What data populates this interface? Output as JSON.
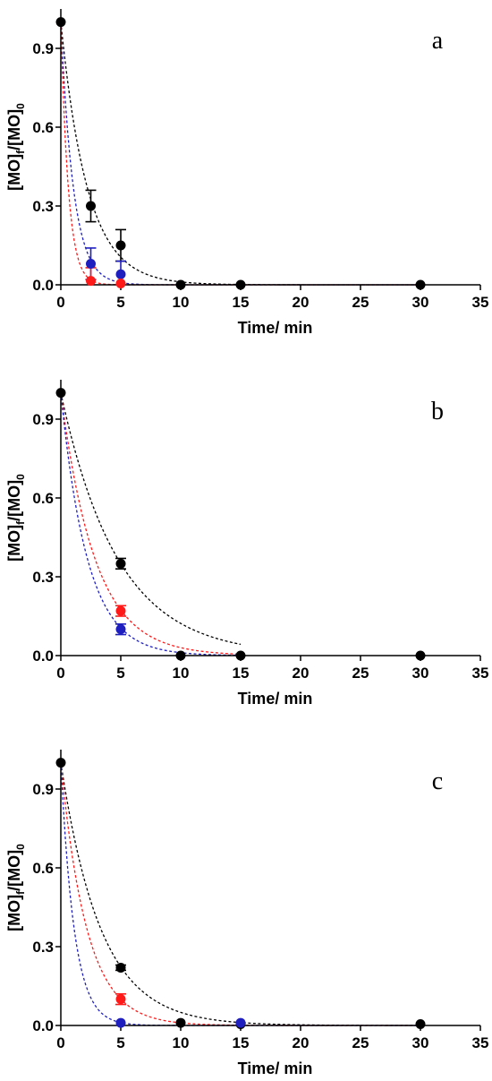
{
  "chart_data": [
    {
      "type": "scatter",
      "panel_label": "a",
      "xlabel": "Time/ min",
      "ylabel": {
        "main": "[MO]",
        "sub1": "f",
        "mid": "/[MO]",
        "sub2": "0"
      },
      "xlim": [
        0,
        35
      ],
      "ylim": [
        0,
        1.05
      ],
      "xticks": [
        "0",
        "5",
        "10",
        "15",
        "20",
        "25",
        "30",
        "35"
      ],
      "yticks": [
        "0.0",
        "0.3",
        "0.6",
        "0.9"
      ],
      "series": [
        {
          "color": "#000000",
          "x": [
            0,
            2.5,
            5,
            10,
            15,
            30
          ],
          "y": [
            1.0,
            0.3,
            0.15,
            0.0,
            0.0,
            0.0
          ],
          "err": [
            0,
            0.06,
            0.06,
            0,
            0,
            0
          ],
          "fit_k": 0.45
        },
        {
          "color": "#1f1fbf",
          "x": [
            2.5,
            5
          ],
          "y": [
            0.08,
            0.04
          ],
          "err": [
            0.06,
            0.05
          ],
          "fit_k": 0.95
        },
        {
          "color": "#ff1a1a",
          "x": [
            2.5,
            5
          ],
          "y": [
            0.015,
            0.005
          ],
          "err": [
            0.05,
            0
          ],
          "fit_k": 1.6
        }
      ]
    },
    {
      "type": "scatter",
      "panel_label": "b",
      "xlabel": "Time/ min",
      "ylabel": {
        "main": "[MO]",
        "sub1": "f",
        "mid": "/[MO]",
        "sub2": "0"
      },
      "xlim": [
        0,
        35
      ],
      "ylim": [
        0,
        1.05
      ],
      "xticks": [
        "0",
        "5",
        "10",
        "15",
        "20",
        "25",
        "30",
        "35"
      ],
      "yticks": [
        "0.0",
        "0.3",
        "0.6",
        "0.9"
      ],
      "series": [
        {
          "color": "#000000",
          "x": [
            0,
            5,
            10,
            15,
            30
          ],
          "y": [
            1.0,
            0.35,
            0.0,
            0.0,
            0.0
          ],
          "err": [
            0,
            0.02,
            0,
            0,
            0
          ],
          "fit_k": 0.21,
          "fit_end": 15
        },
        {
          "color": "#ff1a1a",
          "x": [
            5
          ],
          "y": [
            0.17
          ],
          "err": [
            0.02
          ],
          "fit_k": 0.35,
          "fit_end": 15
        },
        {
          "color": "#1f1fbf",
          "x": [
            5
          ],
          "y": [
            0.1
          ],
          "err": [
            0.02
          ],
          "fit_k": 0.45,
          "fit_end": 15
        }
      ]
    },
    {
      "type": "scatter",
      "panel_label": "c",
      "xlabel": "Time/ min",
      "ylabel": {
        "main": "[MO]",
        "sub1": "f",
        "mid": "/[MO]",
        "sub2": "0"
      },
      "xlim": [
        0,
        35
      ],
      "ylim": [
        0,
        1.05
      ],
      "xticks": [
        "0",
        "5",
        "10",
        "15",
        "20",
        "25",
        "30",
        "35"
      ],
      "yticks": [
        "0.0",
        "0.3",
        "0.6",
        "0.9"
      ],
      "series": [
        {
          "color": "#000000",
          "x": [
            0,
            5,
            10,
            15,
            30
          ],
          "y": [
            1.0,
            0.22,
            0.01,
            0.005,
            0.005
          ],
          "err": [
            0,
            0.01,
            0,
            0,
            0
          ],
          "fit_k": 0.3
        },
        {
          "color": "#ff1a1a",
          "x": [
            5
          ],
          "y": [
            0.1
          ],
          "err": [
            0.02
          ],
          "fit_k": 0.46
        },
        {
          "color": "#1f1fbf",
          "x": [
            5,
            15
          ],
          "y": [
            0.01,
            0.01
          ],
          "err": [
            0,
            0
          ],
          "fit_k": 0.9
        }
      ]
    }
  ]
}
